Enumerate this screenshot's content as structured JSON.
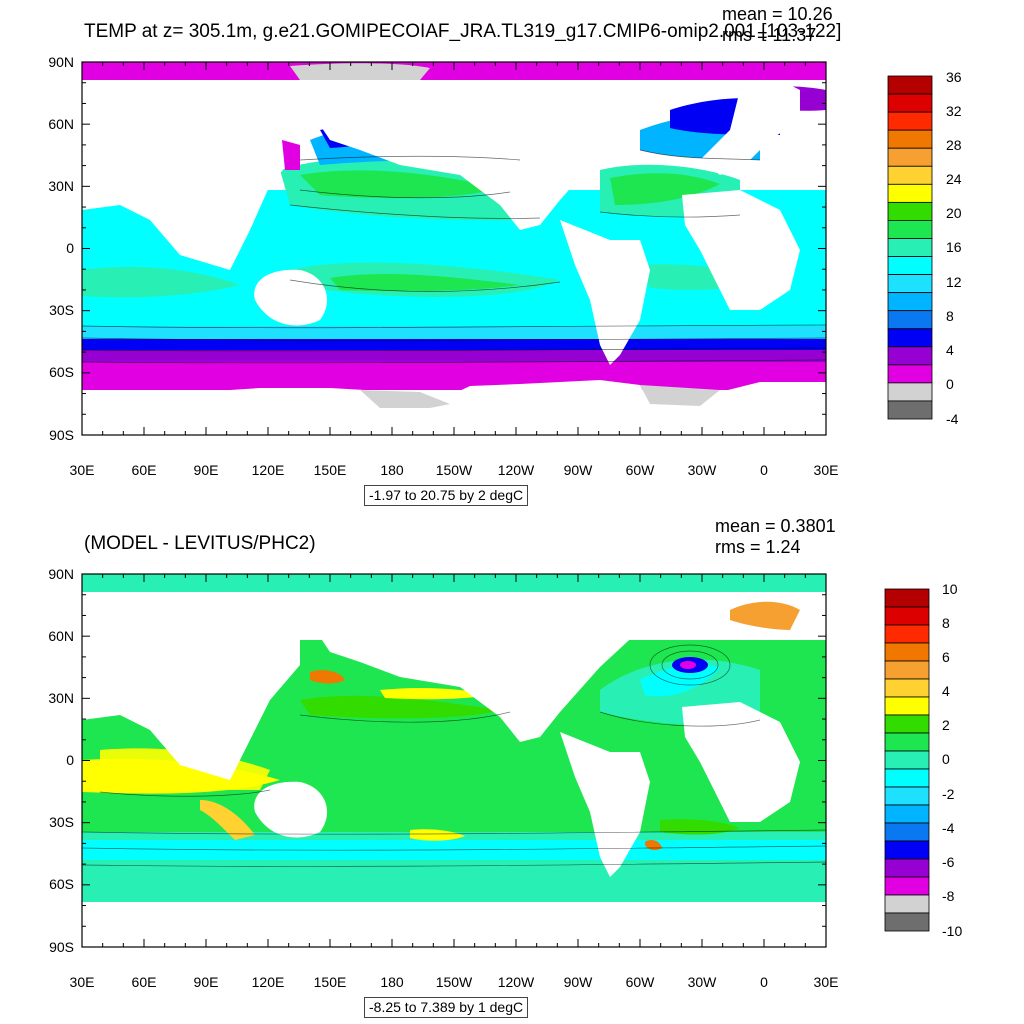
{
  "panels": [
    {
      "id": "top",
      "title": "TEMP at z= 305.1m, g.e21.GOMIPECOIAF_JRA.TL319_g17.CMIP6-omip2.001 [103-122]",
      "stats": {
        "mean": "mean = 10.26",
        "rms": "rms = 11.37"
      },
      "range_label": "-1.97 to 20.75 by 2 degC",
      "lat_labels": [
        "90N",
        "60N",
        "30N",
        "0",
        "30S",
        "60S",
        "90S"
      ],
      "lon_labels": [
        "30E",
        "60E",
        "90E",
        "120E",
        "150E",
        "180",
        "150W",
        "120W",
        "90W",
        "60W",
        "30W",
        "0",
        "30E"
      ],
      "colorbar": {
        "labels": [
          "36",
          "32",
          "28",
          "24",
          "20",
          "16",
          "12",
          "8",
          "4",
          "0",
          "-4"
        ],
        "colors": [
          "#b40000",
          "#dc0000",
          "#ff2a00",
          "#f07800",
          "#f7a032",
          "#ffd232",
          "#ffff00",
          "#32dc00",
          "#1ee650",
          "#28f0b4",
          "#00ffff",
          "#1ee1ff",
          "#00b4ff",
          "#0a78f0",
          "#0000f5",
          "#9600d2",
          "#e100e1",
          "#d2d2d2",
          "#6e6e6e"
        ]
      }
    },
    {
      "id": "bottom",
      "title": "(MODEL - LEVITUS/PHC2)",
      "stats": {
        "mean": "mean = 0.3801",
        "rms": "rms = 1.24"
      },
      "range_label": "-8.25 to 7.389 by 1 degC",
      "lat_labels": [
        "90N",
        "60N",
        "30N",
        "0",
        "30S",
        "60S",
        "90S"
      ],
      "lon_labels": [
        "30E",
        "60E",
        "90E",
        "120E",
        "150E",
        "180",
        "150W",
        "120W",
        "90W",
        "60W",
        "30W",
        "0",
        "30E"
      ],
      "colorbar": {
        "labels": [
          "10",
          "8",
          "6",
          "4",
          "2",
          "0",
          "-2",
          "-4",
          "-6",
          "-8",
          "-10"
        ],
        "colors": [
          "#b40000",
          "#dc0000",
          "#ff2a00",
          "#f07800",
          "#f7a032",
          "#ffd232",
          "#ffff00",
          "#32dc00",
          "#1ee650",
          "#28f0b4",
          "#00ffff",
          "#1ee1ff",
          "#00b4ff",
          "#0a78f0",
          "#0000f5",
          "#9600d2",
          "#e100e1",
          "#d2d2d2",
          "#6e6e6e"
        ]
      }
    }
  ]
}
